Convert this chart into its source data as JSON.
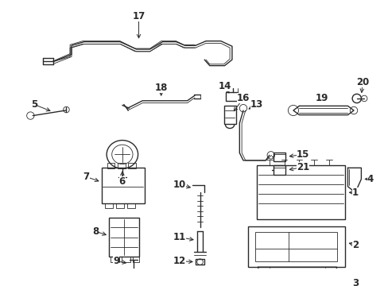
{
  "bg_color": "#ffffff",
  "line_color": "#2a2a2a",
  "lw_thick": 1.5,
  "lw_mid": 1.0,
  "lw_thin": 0.6,
  "label_size": 8.5,
  "figsize": [
    4.89,
    3.6
  ],
  "dpi": 100
}
